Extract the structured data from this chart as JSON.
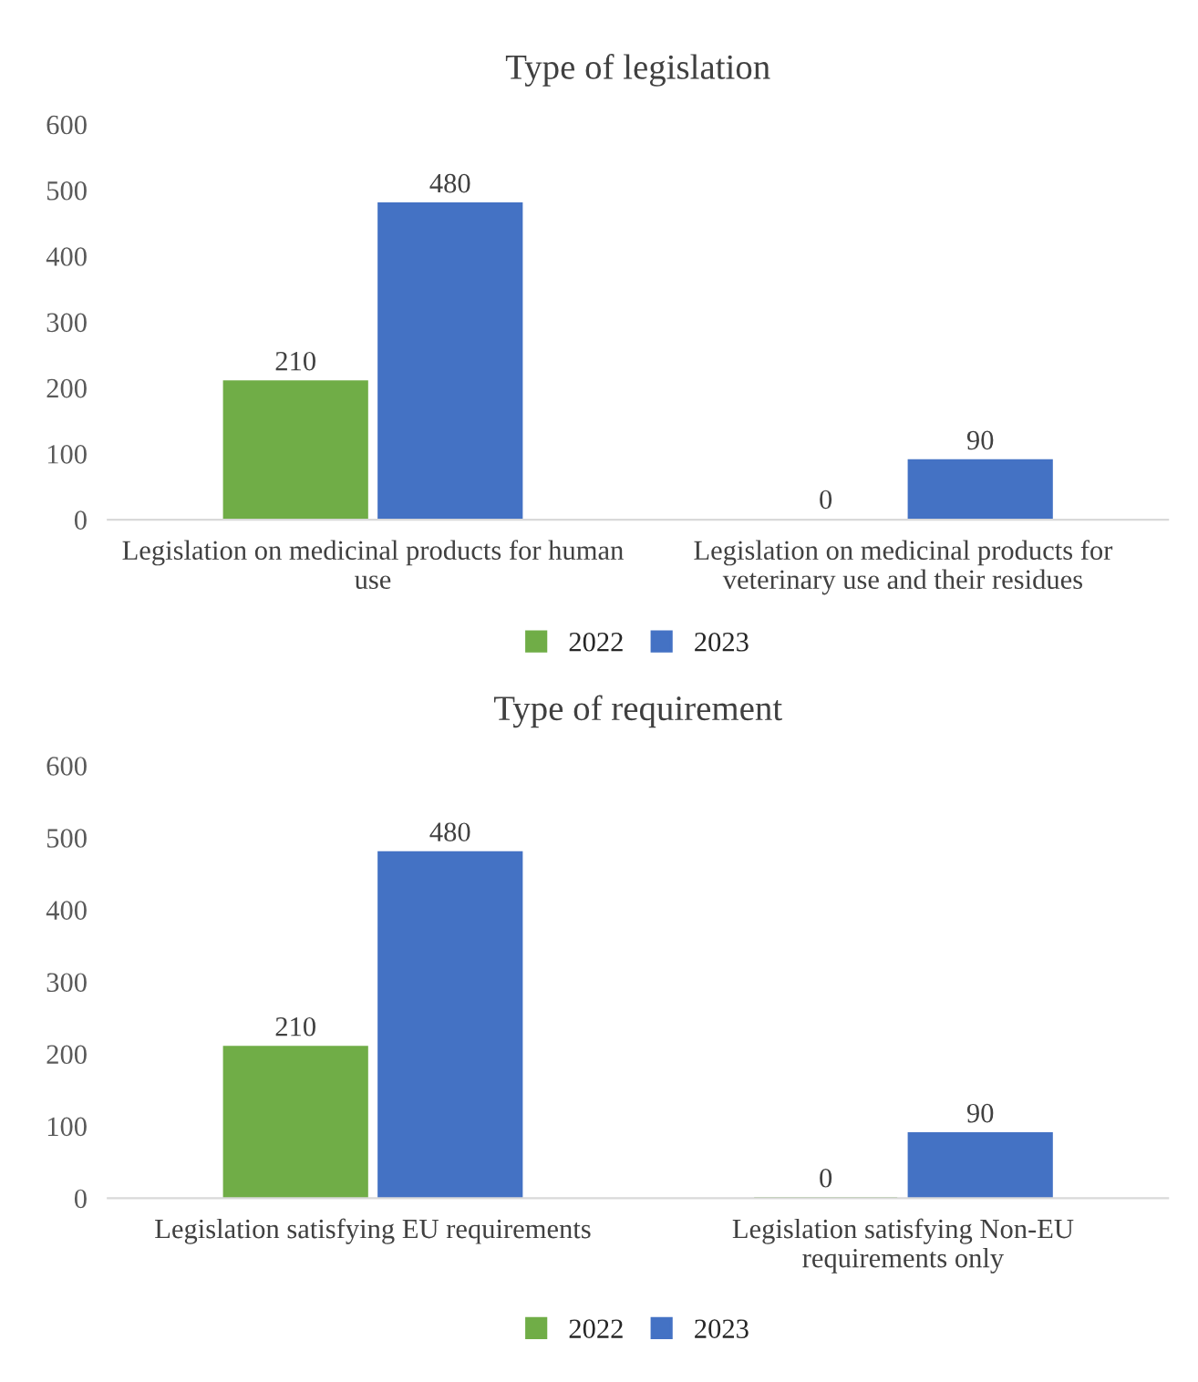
{
  "chart_data": [
    {
      "type": "bar",
      "title": "Type of legislation",
      "categories": [
        "Legislation on medicinal products for human\nuse",
        "Legislation on medicinal products for\nveterinary use and their residues"
      ],
      "series": [
        {
          "name": "2022",
          "color": "#70ad47",
          "values": [
            210,
            0
          ]
        },
        {
          "name": "2023",
          "color": "#4472c4",
          "values": [
            480,
            90
          ]
        }
      ],
      "ylim": [
        0,
        600
      ],
      "yticks": [
        0,
        100,
        200,
        300,
        400,
        500,
        600
      ],
      "grid": false,
      "legend": "bottom",
      "data_labels": true
    },
    {
      "type": "bar",
      "title": "Type of requirement",
      "categories": [
        "Legislation satisfying EU requirements",
        "Legislation satisfying Non-EU\nrequirements only"
      ],
      "series": [
        {
          "name": "2022",
          "color": "#70ad47",
          "values": [
            210,
            0
          ]
        },
        {
          "name": "2023",
          "color": "#4472c4",
          "values": [
            480,
            90
          ]
        }
      ],
      "ylim": [
        0,
        600
      ],
      "yticks": [
        0,
        100,
        200,
        300,
        400,
        500,
        600
      ],
      "grid": false,
      "legend": "bottom",
      "data_labels": true
    }
  ]
}
